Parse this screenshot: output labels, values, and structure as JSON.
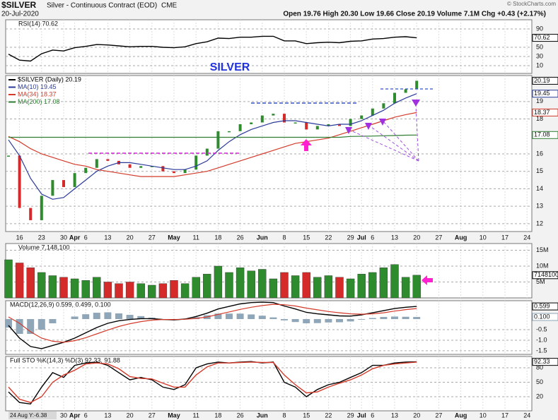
{
  "header": {
    "symbol": "$SILVER",
    "name": "Silver - Continuous Contract (EOD)",
    "exchange": "CME",
    "date": "20-Jul-2020",
    "quote": "Open 19.76 High 20.30 Low 19.66 Close 20.19 Volume 7.1M Chg +0.43 (+2.17%)",
    "credit": "© StockCharts.com",
    "cursor": "24 Aug Y:-6.38"
  },
  "chart_data": [
    {
      "type": "line",
      "ylim": [
        -7,
        110
      ],
      "yticks": [
        10,
        30,
        50,
        90
      ],
      "grid": true,
      "series": [
        {
          "name": "RSI(14) 70.62",
          "color": "#000000",
          "values": [
            35,
            22,
            20,
            36,
            44,
            42,
            49,
            52,
            56,
            55,
            53,
            51,
            52,
            52,
            50,
            49,
            51,
            58,
            62,
            70,
            69,
            72,
            72,
            74,
            74,
            64,
            64,
            58,
            60,
            61,
            60,
            63,
            64,
            68,
            69,
            72,
            73,
            70.62,
            null,
            null,
            null,
            null,
            null,
            null,
            null,
            null,
            null,
            null
          ]
        }
      ]
    },
    {
      "type": "price",
      "title": "SILVER",
      "up_color": "#2e8b2e",
      "down_color": "#d42a2a",
      "ylim": [
        11.55,
        20.49
      ],
      "yticks": [
        12,
        13,
        14,
        15,
        16,
        18,
        19
      ],
      "grid": true,
      "categories": [
        null,
        "16",
        null,
        "23",
        null,
        "30",
        "Apr",
        "6",
        null,
        "13",
        null,
        "20",
        null,
        "27",
        null,
        "May",
        null,
        "11",
        null,
        "18",
        null,
        "26",
        null,
        "Jun",
        null,
        "8",
        null,
        "15",
        null,
        "22",
        null,
        "29",
        "Jul",
        "6",
        null,
        "13",
        null,
        "20",
        null,
        "27",
        null,
        "Aug",
        null,
        "10",
        null,
        "17",
        null,
        "24"
      ],
      "series": [
        {
          "name": "$SILVER (Daily) 20.19",
          "color": "#000000",
          "values": [
            15.9,
            12.9,
            12.2,
            13.6,
            14.5,
            14.1,
            14.9,
            15.2,
            15.7,
            15.6,
            15.4,
            15.2,
            15.3,
            15.3,
            15.0,
            14.9,
            15.1,
            15.9,
            16.3,
            17.3,
            17.3,
            17.7,
            17.8,
            18.2,
            18.3,
            17.8,
            17.8,
            17.4,
            17.6,
            17.7,
            17.6,
            18.0,
            18.2,
            18.6,
            18.9,
            19.5,
            19.7,
            20.19,
            null,
            null,
            null,
            null,
            null,
            null,
            null,
            null,
            null,
            null
          ]
        },
        {
          "name": "MA(10) 19.45",
          "color": "#2a3a9a",
          "values": [
            16.8,
            15.9,
            14.6,
            13.7,
            13.4,
            13.5,
            14.0,
            14.5,
            15.0,
            15.3,
            15.5,
            15.5,
            15.4,
            15.3,
            15.2,
            15.1,
            15.1,
            15.3,
            15.6,
            16.2,
            16.7,
            17.1,
            17.4,
            17.6,
            17.8,
            17.9,
            17.9,
            17.8,
            17.7,
            17.6,
            17.7,
            17.7,
            17.9,
            18.2,
            18.5,
            18.9,
            19.2,
            19.45,
            null,
            null,
            null,
            null,
            null,
            null,
            null,
            null,
            null,
            null
          ]
        },
        {
          "name": "MA(34) 18.37",
          "color": "#d43a2a",
          "values": [
            17.0,
            16.7,
            16.3,
            16.0,
            15.8,
            15.6,
            15.4,
            15.3,
            15.1,
            15.0,
            14.9,
            14.8,
            14.7,
            14.7,
            14.7,
            14.7,
            14.8,
            14.9,
            15.0,
            15.2,
            15.4,
            15.6,
            15.8,
            16.0,
            16.2,
            16.4,
            16.6,
            16.7,
            16.8,
            16.9,
            17.1,
            17.3,
            17.5,
            17.7,
            17.9,
            18.1,
            18.25,
            18.37,
            null,
            null,
            null,
            null,
            null,
            null,
            null,
            null,
            null,
            null
          ]
        },
        {
          "name": "MA(200) 17.08",
          "color": "#2e7d32",
          "values": [
            16.95,
            16.95,
            16.95,
            16.95,
            16.95,
            16.95,
            16.95,
            16.95,
            16.95,
            16.95,
            16.95,
            16.95,
            16.95,
            16.95,
            16.95,
            16.95,
            16.95,
            16.95,
            16.95,
            16.95,
            16.95,
            16.95,
            16.95,
            16.95,
            16.95,
            16.95,
            16.95,
            16.95,
            16.95,
            16.95,
            16.95,
            17.0,
            17.01,
            17.02,
            17.04,
            17.05,
            17.07,
            17.08,
            null,
            null,
            null,
            null,
            null,
            null,
            null,
            null,
            null,
            null
          ]
        }
      ]
    },
    {
      "type": "bar",
      "up_color": "#2e8b2e",
      "down_color": "#d42a2a",
      "ylim": [
        0,
        17100000
      ],
      "yticks": [
        {
          "value": 5000000,
          "label": "5M"
        },
        {
          "value": 10000000,
          "label": "10M"
        },
        {
          "value": 15000000,
          "label": "15M"
        }
      ],
      "grid": true,
      "series": [
        {
          "name": "Volume 7,148,100",
          "color": "#000000",
          "values": [
            12000000,
            11000000,
            9500000,
            8000000,
            7000000,
            6500000,
            6000000,
            5500000,
            6500000,
            5000000,
            4500000,
            5000000,
            4500000,
            4000000,
            4500000,
            5500000,
            4500000,
            6500000,
            7500000,
            10000000,
            8000000,
            9500000,
            8500000,
            9000000,
            6000000,
            8000000,
            7000000,
            8000000,
            6500000,
            7000000,
            6500000,
            6000000,
            7500000,
            8000000,
            9500000,
            10500000,
            6500000,
            7148100,
            null,
            null,
            null,
            null,
            null,
            null,
            null,
            null,
            null,
            null
          ]
        }
      ]
    },
    {
      "type": "macd",
      "title": "MACD(12,26,9) 0.599, 0.499, 0.100",
      "ylim": [
        -1.67,
        0.87
      ],
      "yticks": [
        -1.5,
        {
          "value": -1,
          "label": "-1.0"
        },
        -0.5
      ],
      "grid": true,
      "series": [
        {
          "color": "#000000",
          "values": [
            -0.3,
            -0.9,
            -1.3,
            -1.4,
            -1.25,
            -1.1,
            -0.9,
            -0.65,
            -0.4,
            -0.2,
            -0.08,
            -0.02,
            0.02,
            0.02,
            -0.02,
            -0.04,
            0,
            0.12,
            0.28,
            0.48,
            0.6,
            0.72,
            0.78,
            0.8,
            0.78,
            0.62,
            0.48,
            0.32,
            0.25,
            0.2,
            0.15,
            0.14,
            0.2,
            0.3,
            0.4,
            0.5,
            0.56,
            0.599,
            null,
            null,
            null,
            null,
            null,
            null,
            null,
            null,
            null,
            null
          ]
        },
        {
          "color": "#d43a2a",
          "values": [
            0.1,
            -0.2,
            -0.6,
            -0.9,
            -1.05,
            -1.1,
            -1.02,
            -0.88,
            -0.7,
            -0.52,
            -0.35,
            -0.22,
            -0.12,
            -0.05,
            -0.02,
            -0.02,
            -0.01,
            0.03,
            0.1,
            0.22,
            0.34,
            0.46,
            0.56,
            0.64,
            0.7,
            0.68,
            0.62,
            0.52,
            0.44,
            0.36,
            0.3,
            0.25,
            0.23,
            0.25,
            0.3,
            0.38,
            0.45,
            0.499,
            null,
            null,
            null,
            null,
            null,
            null,
            null,
            null,
            null,
            null
          ]
        },
        {
          "color": "#8fa6b8",
          "values": [
            -0.4,
            -0.7,
            -0.7,
            -0.5,
            -0.2,
            0,
            0.12,
            0.23,
            0.3,
            0.32,
            0.27,
            0.2,
            0.14,
            0.07,
            0,
            -0.02,
            0.01,
            0.09,
            0.18,
            0.26,
            0.26,
            0.26,
            0.22,
            0.16,
            0.08,
            -0.06,
            -0.14,
            -0.2,
            -0.19,
            -0.16,
            -0.15,
            -0.11,
            -0.03,
            0.05,
            0.1,
            0.12,
            0.11,
            0.1,
            null,
            null,
            null,
            null,
            null,
            null,
            null,
            null,
            null,
            null
          ],
          "value_labels": [
            null,
            null,
            null,
            null,
            null,
            null,
            null,
            null,
            null,
            null,
            null,
            null,
            null,
            null,
            null,
            null,
            null,
            null,
            null,
            null,
            null,
            null,
            null,
            null,
            null,
            null,
            null,
            null,
            null,
            null,
            null,
            null,
            null,
            null,
            null,
            null,
            null,
            "0.100",
            null,
            null,
            null,
            null,
            null,
            null,
            null,
            null,
            null,
            null
          ]
        }
      ]
    },
    {
      "type": "line",
      "title": "Full STO %K(14,3) %D(3) 92.33, 91.88",
      "ylim": [
        -9.2,
        103.5
      ],
      "yticks": [
        20,
        50,
        80
      ],
      "grid": true,
      "series": [
        {
          "color": "#000000",
          "values": [
            30,
            8,
            5,
            40,
            70,
            60,
            85,
            90,
            92,
            85,
            70,
            55,
            60,
            55,
            40,
            35,
            45,
            80,
            88,
            92,
            90,
            92,
            93,
            90,
            92,
            50,
            40,
            20,
            35,
            45,
            50,
            60,
            70,
            85,
            85,
            90,
            92,
            92.33,
            null,
            null,
            null,
            null,
            null,
            null,
            null,
            null,
            null,
            null
          ]
        },
        {
          "color": "#d43a2a",
          "values": [
            40,
            15,
            8,
            20,
            50,
            65,
            75,
            88,
            90,
            88,
            78,
            62,
            58,
            57,
            48,
            40,
            40,
            65,
            82,
            90,
            90,
            91,
            92,
            91,
            91,
            65,
            45,
            28,
            30,
            40,
            48,
            55,
            65,
            78,
            85,
            88,
            90,
            91.88,
            null,
            null,
            null,
            null,
            null,
            null,
            null,
            null,
            null,
            null
          ]
        }
      ]
    }
  ]
}
